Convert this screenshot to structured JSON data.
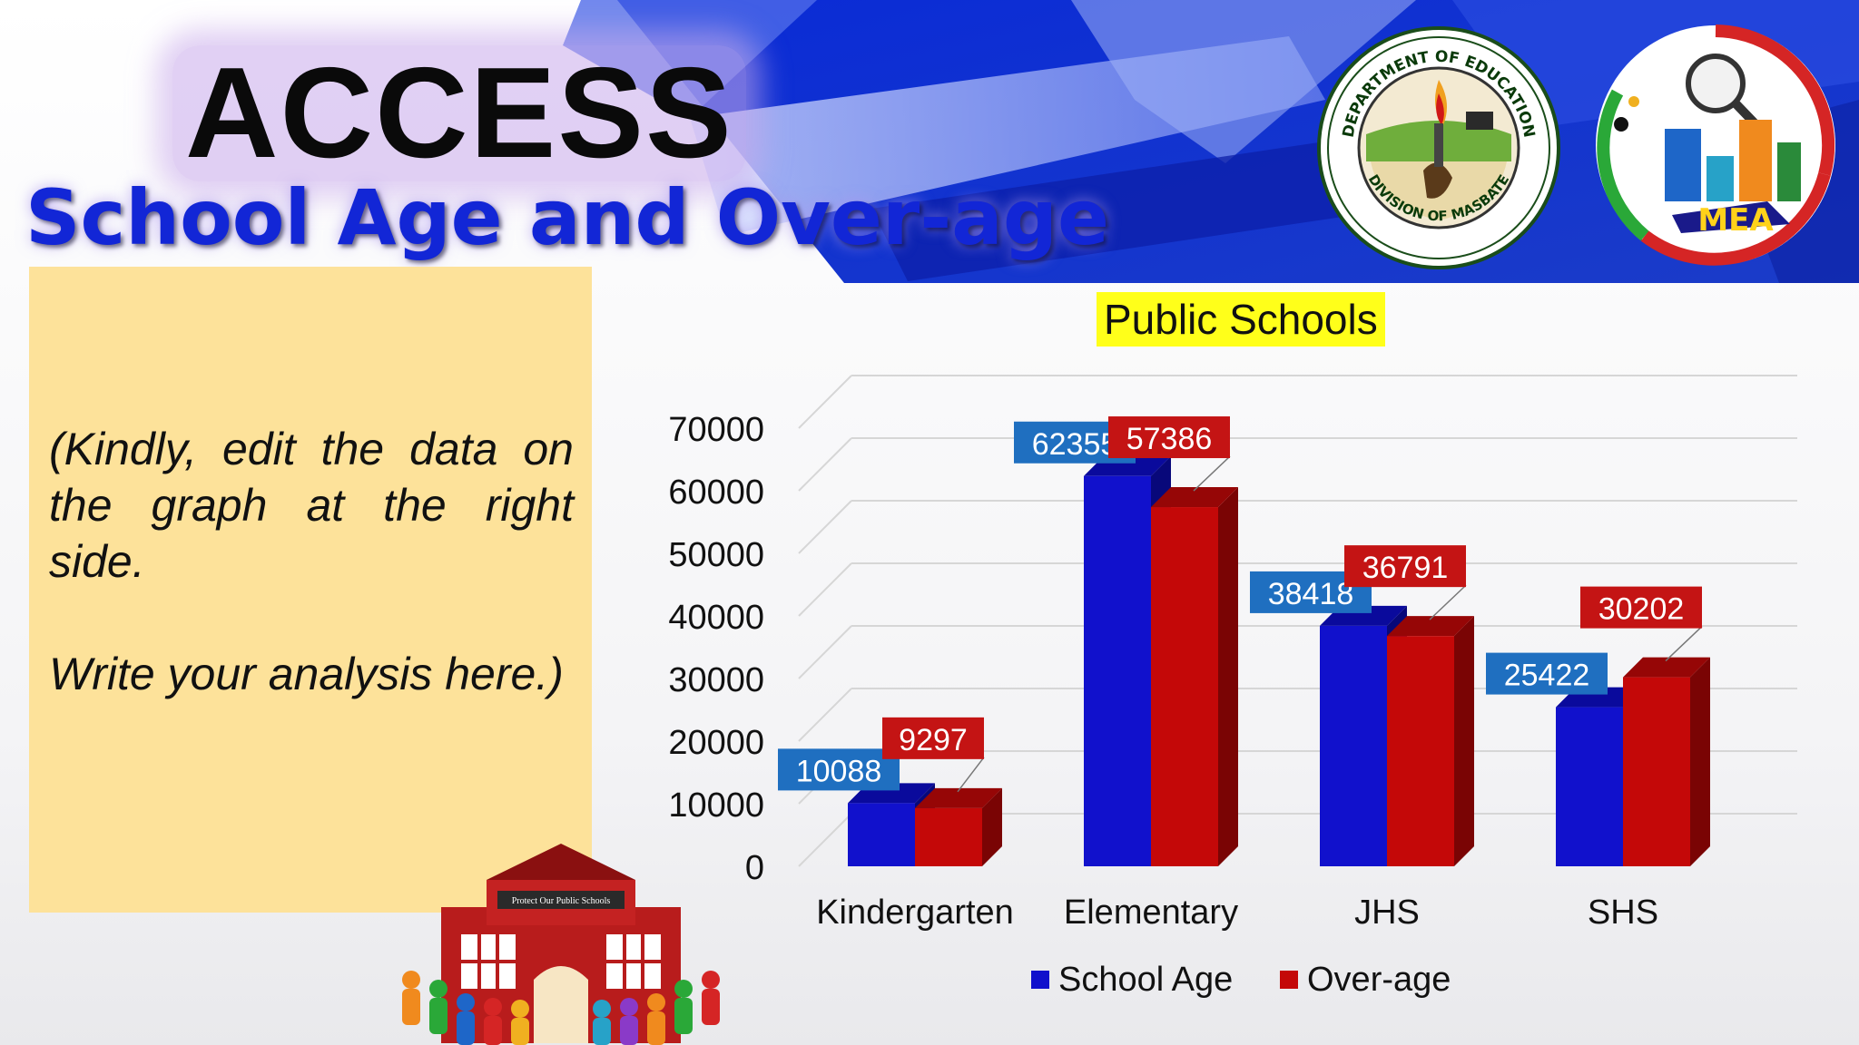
{
  "slide": {
    "title": "ACCESS",
    "subtitle": "School Age and Over-age",
    "analysis_text": "(Kindly, edit the data on the graph at the right side.\n\nWrite your analysis here.)",
    "seal_deped_text": [
      "DEPARTMENT OF EDUCATION",
      "DIVISION OF MASBATE"
    ],
    "seal_mea_text": "MEA",
    "clipart_sign": "Protect Our Public Schools"
  },
  "colors": {
    "banner_blue": "#1f3fd0",
    "title_blue": "#1226d6",
    "panel": "#fde29a",
    "school_age": "#1111cc",
    "over_age": "#c40808",
    "title_highlight": "#ffff1a"
  },
  "chart_data": {
    "type": "bar",
    "title": "Public Schools",
    "categories": [
      "Kindergarten",
      "Elementary",
      "JHS",
      "SHS"
    ],
    "series": [
      {
        "name": "School Age",
        "values": [
          10088,
          62355,
          38418,
          25422
        ],
        "color": "#1111cc",
        "label_color": "#1f6fc0"
      },
      {
        "name": "Over-age",
        "values": [
          9297,
          57386,
          36791,
          30202
        ],
        "color": "#c40808",
        "label_color": "#c41414"
      }
    ],
    "yticks": [
      0,
      10000,
      20000,
      30000,
      40000,
      50000,
      60000,
      70000
    ],
    "ylim": [
      0,
      75000
    ],
    "grid": true,
    "legend_position": "bottom",
    "style": "3d"
  }
}
